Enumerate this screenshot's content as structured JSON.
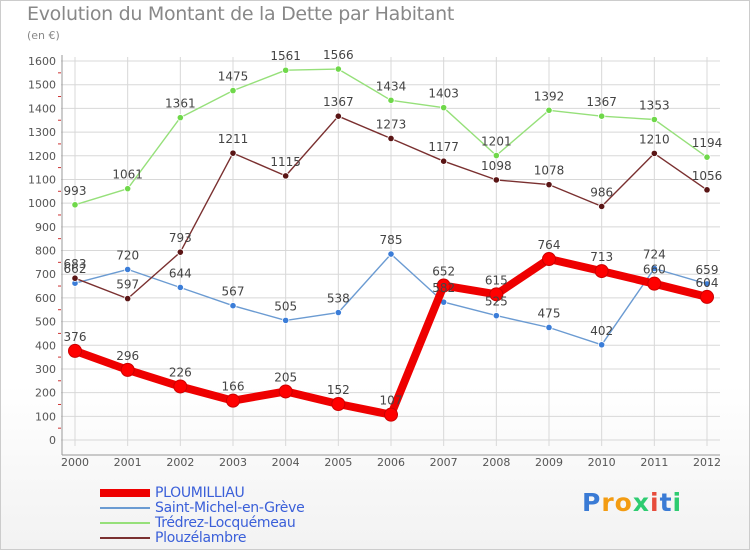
{
  "title": "Evolution du Montant de la Dette par Habitant",
  "subtitle": "(en €)",
  "logo_text": "Proxiti",
  "chart_data": {
    "type": "line",
    "title": "Evolution du Montant de la Dette par Habitant",
    "subtitle": "(en €)",
    "xlabel": "",
    "ylabel": "",
    "ylim": [
      0,
      1600
    ],
    "yticks": [
      0,
      100,
      200,
      300,
      400,
      500,
      600,
      700,
      800,
      900,
      1000,
      1100,
      1200,
      1300,
      1400,
      1500,
      1600
    ],
    "grid": true,
    "legend_position": "bottom-left",
    "categories": [
      "2000",
      "2001",
      "2002",
      "2003",
      "2004",
      "2005",
      "2006",
      "2007",
      "2008",
      "2009",
      "2010",
      "2011",
      "2012"
    ],
    "series": [
      {
        "name": "PLOUMILLIAU",
        "color": "#ee0000",
        "marker": "#ff0000",
        "emphasis": true,
        "values": [
          376,
          296,
          226,
          166,
          205,
          152,
          107,
          652,
          615,
          764,
          713,
          660,
          604
        ]
      },
      {
        "name": "Saint-Michel-en-Grève",
        "color": "#6b9bd2",
        "marker": "#3b7dd8",
        "emphasis": false,
        "values": [
          662,
          720,
          644,
          567,
          505,
          538,
          785,
          582,
          525,
          475,
          402,
          724,
          659
        ]
      },
      {
        "name": "Trédrez-Locquémeau",
        "color": "#96e07a",
        "marker": "#6fd84a",
        "emphasis": false,
        "values": [
          993,
          1061,
          1361,
          1475,
          1561,
          1566,
          1434,
          1403,
          1201,
          1392,
          1367,
          1353,
          1194
        ]
      },
      {
        "name": "Plouzélambre",
        "color": "#7a3030",
        "marker": "#5a1515",
        "emphasis": false,
        "values": [
          683,
          597,
          793,
          1211,
          1115,
          1367,
          1273,
          1177,
          1098,
          1078,
          986,
          1210,
          1056
        ]
      }
    ]
  }
}
